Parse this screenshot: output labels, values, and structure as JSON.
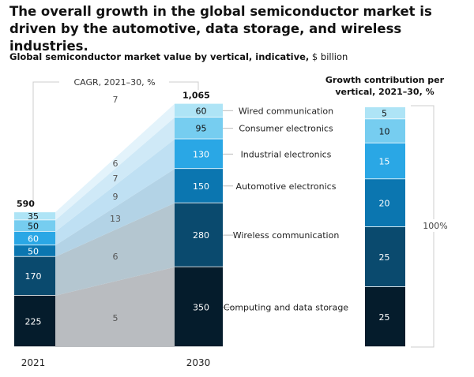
{
  "headline": "The overall growth in the global semiconductor market is driven by the automotive, data storage, and wireless industries.",
  "subtitle_bold": "Global semiconductor market value by vertical, indicative,",
  "subtitle_unit": "$ billion",
  "colors": {
    "computing": "#051c2c",
    "wireless": "#0a4a6e",
    "automotive": "#0b76b0",
    "industrial": "#2aa7e5",
    "consumer": "#76cdf0",
    "wired": "#aee4f6"
  },
  "chart_data": {
    "type": "bar",
    "stacked": true,
    "categories": [
      "2021",
      "2030"
    ],
    "totals": [
      "590",
      "1,065"
    ],
    "cagr_label": "CAGR, 2021–30, %",
    "contribution_title": "Growth contribution per vertical, 2021–30, %",
    "contribution_total": "100%",
    "series": [
      {
        "name": "Computing and data storage",
        "values": [
          225,
          350
        ],
        "cagr": "5",
        "contribution": 25
      },
      {
        "name": "Wireless communication",
        "values": [
          170,
          280
        ],
        "cagr": "6",
        "contribution": 25
      },
      {
        "name": "Automotive electronics",
        "values": [
          50,
          150
        ],
        "cagr": "13",
        "contribution": 20
      },
      {
        "name": "Industrial electronics",
        "values": [
          60,
          130
        ],
        "cagr": "9",
        "contribution": 15
      },
      {
        "name": "Consumer electronics",
        "values": [
          50,
          95
        ],
        "cagr": "7",
        "contribution": 10
      },
      {
        "name": "Wired communication",
        "values": [
          35,
          60
        ],
        "cagr": "6",
        "contribution": 5
      }
    ],
    "extra_cagr": "7"
  }
}
